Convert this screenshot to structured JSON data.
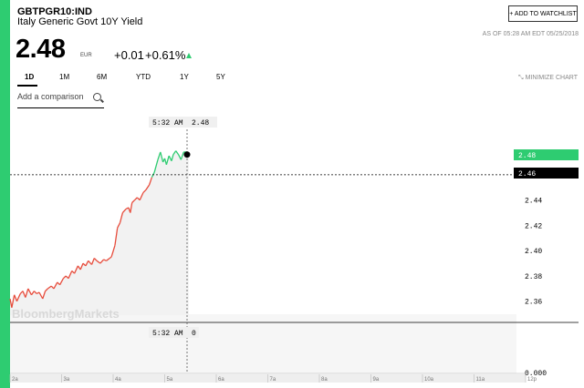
{
  "header": {
    "ticker": "GBTPGR10:IND",
    "name": "Italy Generic Govt 10Y Yield",
    "watchlist_label": "+ ADD TO WATCHLIST",
    "as_of": "AS OF 05:28 AM EDT 05/25/2018"
  },
  "quote": {
    "price": "2.48",
    "currency": "EUR",
    "change": "+0.01",
    "change_pct": "+0.61%"
  },
  "tabs": [
    {
      "label": "1D",
      "active": true
    },
    {
      "label": "1M"
    },
    {
      "label": "6M"
    },
    {
      "label": "YTD"
    },
    {
      "label": "1Y"
    },
    {
      "label": "5Y"
    }
  ],
  "minimize_label": "MINIMIZE CHART",
  "compare_placeholder": "Add a comparison",
  "watermark": "BloombergMarkets",
  "colors": {
    "accent": "#2ecc71",
    "down": "#e74c3c",
    "up": "#2ecc71"
  },
  "chart_data": {
    "type": "line",
    "y_ticks": [
      "2.46",
      "2.44",
      "2.42",
      "2.40",
      "2.38",
      "2.36"
    ],
    "x_ticks": [
      "2a",
      "3a",
      "4a",
      "5a",
      "6a",
      "7a",
      "8a",
      "9a",
      "10a",
      "11a",
      "12p"
    ],
    "ylim": [
      2.349,
      2.483
    ],
    "current_label": "2.48",
    "prev_close_label": "2.46",
    "crosshair_time": "5:32 AM",
    "crosshair_value": "2.48",
    "crosshair_volume": "0",
    "volume_axis_label": "0.000",
    "series": [
      {
        "x": [
          "2:00",
          "2:02",
          "2:05",
          "2:08",
          "2:12",
          "2:15",
          "2:18",
          "2:21",
          "2:25",
          "2:28",
          "2:31",
          "2:34",
          "2:38",
          "2:41",
          "2:44",
          "2:48",
          "2:51",
          "2:55",
          "2:58",
          "3:02",
          "3:05",
          "3:08",
          "3:12",
          "3:15",
          "3:19",
          "3:22",
          "3:25",
          "3:28",
          "3:31",
          "3:35",
          "3:38",
          "3:41",
          "3:45",
          "3:49",
          "3:52",
          "3:56",
          "3:58",
          "4:02",
          "4:05",
          "4:08",
          "4:11",
          "4:15",
          "4:18",
          "4:20",
          "4:22",
          "4:25",
          "4:28",
          "4:31",
          "4:35",
          "4:38",
          "4:42",
          "4:45",
          "4:48",
          "4:52",
          "4:55",
          "4:58",
          "5:00",
          "5:02",
          "5:05",
          "5:08",
          "5:10",
          "5:13",
          "5:16",
          "5:19",
          "5:22",
          "5:26",
          "5:28"
        ],
        "y": [
          2.362,
          2.355,
          2.365,
          2.36,
          2.366,
          2.368,
          2.363,
          2.37,
          2.365,
          2.368,
          2.366,
          2.367,
          2.362,
          2.368,
          2.37,
          2.372,
          2.37,
          2.375,
          2.373,
          2.378,
          2.38,
          2.378,
          2.384,
          2.382,
          2.388,
          2.385,
          2.39,
          2.388,
          2.392,
          2.389,
          2.394,
          2.392,
          2.39,
          2.393,
          2.392,
          2.394,
          2.395,
          2.404,
          2.418,
          2.422,
          2.43,
          2.433,
          2.434,
          2.43,
          2.438,
          2.44,
          2.442,
          2.44,
          2.446,
          2.448,
          2.452,
          2.458,
          2.462,
          2.472,
          2.478,
          2.47,
          2.473,
          2.468,
          2.475,
          2.471,
          2.476,
          2.479,
          2.476,
          2.472,
          2.478,
          2.478,
          2.476
        ]
      }
    ]
  }
}
